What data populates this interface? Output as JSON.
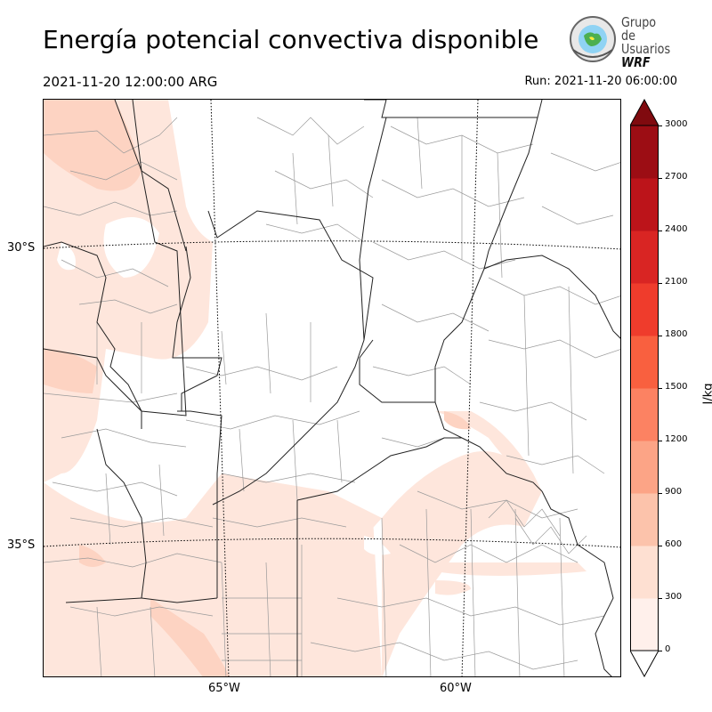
{
  "header": {
    "title": "Energía potencial convectiva disponible",
    "valid_time": "2021-11-20 12:00:00 ARG",
    "run_time": "Run: 2021-11-20 06:00:00"
  },
  "logo": {
    "line1": "Grupo de",
    "line2": "Usuarios",
    "line3": "WRF"
  },
  "map": {
    "lat_labels": [
      "30°S",
      "35°S"
    ],
    "lon_labels": [
      "65°W",
      "60°W"
    ]
  },
  "colorbar": {
    "label": "J/kg",
    "ticks": [
      "0",
      "300",
      "600",
      "900",
      "1200",
      "1500",
      "1800",
      "2100",
      "2400",
      "2700",
      "3000"
    ],
    "colors": [
      "#fff0eb",
      "#fee0d2",
      "#fcc3ab",
      "#fca486",
      "#fc8262",
      "#f9603f",
      "#ef3c2c",
      "#d92523",
      "#bc141a",
      "#9c0d14",
      "#800a0f"
    ],
    "extend": "both"
  }
}
